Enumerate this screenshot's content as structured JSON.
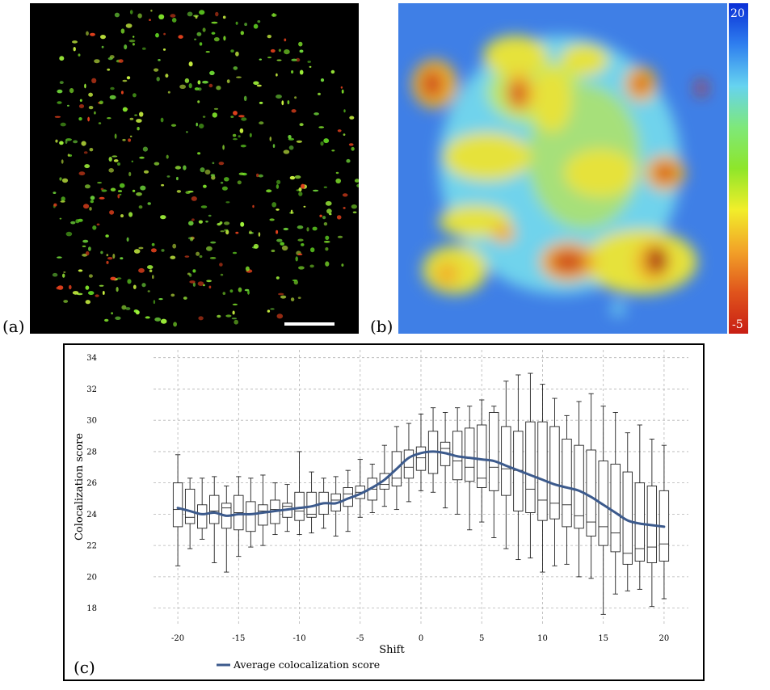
{
  "panels": {
    "a": "(a)",
    "b": "(b)",
    "c": "(c)"
  },
  "colorbar": {
    "max_label": "20",
    "min_label": "-5",
    "colors": [
      "#0a2fd6",
      "#2f7fef",
      "#66d3f0",
      "#7ee87a",
      "#8ee62a",
      "#f2ee2a",
      "#f2a228",
      "#e0541c",
      "#c81e14"
    ]
  },
  "chart_data": {
    "type": "box",
    "xlabel": "Shift",
    "ylabel": "Colocalization score",
    "xlim": [
      -22,
      22
    ],
    "ylim": [
      17,
      34.5
    ],
    "xticks": [
      -20,
      -15,
      -10,
      -5,
      0,
      5,
      10,
      15,
      20
    ],
    "yticks": [
      18,
      20,
      22,
      24,
      26,
      28,
      30,
      32,
      34
    ],
    "grid": true,
    "legend": {
      "placement": "bottom-left",
      "entries": [
        "Average colocalization score"
      ]
    },
    "line_color": "#3c5a8c",
    "boxes": [
      {
        "x": -20,
        "min": 20.7,
        "q1": 23.2,
        "med": 24.3,
        "q3": 26.0,
        "max": 27.8
      },
      {
        "x": -19,
        "min": 21.8,
        "q1": 23.4,
        "med": 23.8,
        "q3": 25.6,
        "max": 26.3
      },
      {
        "x": -18,
        "min": 22.4,
        "q1": 23.1,
        "med": 24.0,
        "q3": 24.6,
        "max": 26.3
      },
      {
        "x": -17,
        "min": 20.9,
        "q1": 23.4,
        "med": 24.2,
        "q3": 25.2,
        "max": 26.4
      },
      {
        "x": -16,
        "min": 20.3,
        "q1": 23.1,
        "med": 24.4,
        "q3": 24.7,
        "max": 25.8
      },
      {
        "x": -15,
        "min": 21.3,
        "q1": 23.0,
        "med": 24.1,
        "q3": 25.2,
        "max": 26.4
      },
      {
        "x": -14,
        "min": 21.9,
        "q1": 22.9,
        "med": 24.0,
        "q3": 24.8,
        "max": 26.3
      },
      {
        "x": -13,
        "min": 22.0,
        "q1": 23.3,
        "med": 24.2,
        "q3": 24.6,
        "max": 26.5
      },
      {
        "x": -12,
        "min": 22.7,
        "q1": 23.4,
        "med": 24.3,
        "q3": 24.9,
        "max": 26.0
      },
      {
        "x": -11,
        "min": 22.9,
        "q1": 23.8,
        "med": 24.5,
        "q3": 24.7,
        "max": 25.9
      },
      {
        "x": -10,
        "min": 22.7,
        "q1": 23.6,
        "med": 24.2,
        "q3": 25.4,
        "max": 28.0
      },
      {
        "x": -9,
        "min": 22.8,
        "q1": 23.8,
        "med": 24.0,
        "q3": 25.4,
        "max": 26.7
      },
      {
        "x": -8,
        "min": 23.1,
        "q1": 24.0,
        "med": 24.7,
        "q3": 25.4,
        "max": 26.3
      },
      {
        "x": -7,
        "min": 22.6,
        "q1": 24.2,
        "med": 24.9,
        "q3": 25.3,
        "max": 26.4
      },
      {
        "x": -6,
        "min": 22.9,
        "q1": 24.5,
        "med": 25.3,
        "q3": 25.7,
        "max": 26.8
      },
      {
        "x": -5,
        "min": 23.8,
        "q1": 25.0,
        "med": 25.4,
        "q3": 25.8,
        "max": 27.5
      },
      {
        "x": -4,
        "min": 24.1,
        "q1": 24.9,
        "med": 25.6,
        "q3": 26.3,
        "max": 27.2
      },
      {
        "x": -3,
        "min": 24.5,
        "q1": 25.6,
        "med": 25.9,
        "q3": 26.6,
        "max": 28.4
      },
      {
        "x": -2,
        "min": 24.3,
        "q1": 25.8,
        "med": 26.3,
        "q3": 28.0,
        "max": 29.6
      },
      {
        "x": -1,
        "min": 24.8,
        "q1": 26.3,
        "med": 27.0,
        "q3": 28.1,
        "max": 29.8
      },
      {
        "x": 0,
        "min": 25.5,
        "q1": 26.8,
        "med": 27.6,
        "q3": 28.3,
        "max": 30.4
      },
      {
        "x": 1,
        "min": 25.4,
        "q1": 26.6,
        "med": 28.0,
        "q3": 29.3,
        "max": 30.8
      },
      {
        "x": 2,
        "min": 24.4,
        "q1": 27.1,
        "med": 28.2,
        "q3": 28.6,
        "max": 30.5
      },
      {
        "x": 3,
        "min": 24.0,
        "q1": 26.2,
        "med": 27.4,
        "q3": 29.3,
        "max": 30.8
      },
      {
        "x": 4,
        "min": 23.0,
        "q1": 26.1,
        "med": 27.0,
        "q3": 29.5,
        "max": 30.9
      },
      {
        "x": 5,
        "min": 23.5,
        "q1": 25.7,
        "med": 26.3,
        "q3": 29.7,
        "max": 31.3
      },
      {
        "x": 6,
        "min": 22.5,
        "q1": 25.5,
        "med": 27.0,
        "q3": 30.5,
        "max": 30.9
      },
      {
        "x": 7,
        "min": 21.8,
        "q1": 25.2,
        "med": 26.9,
        "q3": 29.6,
        "max": 32.5
      },
      {
        "x": 8,
        "min": 21.1,
        "q1": 24.2,
        "med": 26.8,
        "q3": 29.3,
        "max": 32.9
      },
      {
        "x": 9,
        "min": 21.2,
        "q1": 24.1,
        "med": 25.6,
        "q3": 29.9,
        "max": 33.0
      },
      {
        "x": 10,
        "min": 20.3,
        "q1": 23.6,
        "med": 24.9,
        "q3": 29.9,
        "max": 32.3
      },
      {
        "x": 11,
        "min": 20.7,
        "q1": 23.7,
        "med": 24.7,
        "q3": 29.6,
        "max": 31.4
      },
      {
        "x": 12,
        "min": 20.8,
        "q1": 23.2,
        "med": 24.6,
        "q3": 28.8,
        "max": 30.3
      },
      {
        "x": 13,
        "min": 20.0,
        "q1": 23.1,
        "med": 23.9,
        "q3": 28.4,
        "max": 31.2
      },
      {
        "x": 14,
        "min": 19.9,
        "q1": 22.6,
        "med": 23.5,
        "q3": 28.1,
        "max": 31.7
      },
      {
        "x": 15,
        "min": 17.6,
        "q1": 22.0,
        "med": 23.2,
        "q3": 27.4,
        "max": 30.9
      },
      {
        "x": 16,
        "min": 18.9,
        "q1": 21.6,
        "med": 22.8,
        "q3": 27.2,
        "max": 30.5
      },
      {
        "x": 17,
        "min": 19.1,
        "q1": 20.8,
        "med": 21.5,
        "q3": 26.7,
        "max": 29.2
      },
      {
        "x": 18,
        "min": 19.2,
        "q1": 21.0,
        "med": 21.8,
        "q3": 26.0,
        "max": 29.7
      },
      {
        "x": 19,
        "min": 18.1,
        "q1": 20.9,
        "med": 21.9,
        "q3": 25.8,
        "max": 28.8
      },
      {
        "x": 20,
        "min": 18.6,
        "q1": 21.0,
        "med": 22.1,
        "q3": 25.5,
        "max": 28.4
      }
    ],
    "series": [
      {
        "name": "Average colocalization score",
        "x": [
          -20,
          -19,
          -18,
          -17,
          -16,
          -15,
          -14,
          -13,
          -12,
          -11,
          -10,
          -9,
          -8,
          -7,
          -6,
          -5,
          -4,
          -3,
          -2,
          -1,
          0,
          1,
          2,
          3,
          4,
          5,
          6,
          7,
          8,
          9,
          10,
          11,
          12,
          13,
          14,
          15,
          16,
          17,
          18,
          19,
          20
        ],
        "y": [
          24.4,
          24.2,
          24.0,
          24.1,
          23.9,
          24.0,
          24.0,
          24.1,
          24.2,
          24.3,
          24.4,
          24.5,
          24.7,
          24.7,
          25.0,
          25.3,
          25.7,
          26.2,
          26.9,
          27.6,
          27.9,
          28.0,
          27.9,
          27.7,
          27.6,
          27.5,
          27.4,
          27.1,
          26.8,
          26.5,
          26.2,
          25.9,
          25.7,
          25.5,
          25.1,
          24.6,
          24.1,
          23.6,
          23.4,
          23.3,
          23.2
        ]
      }
    ]
  }
}
